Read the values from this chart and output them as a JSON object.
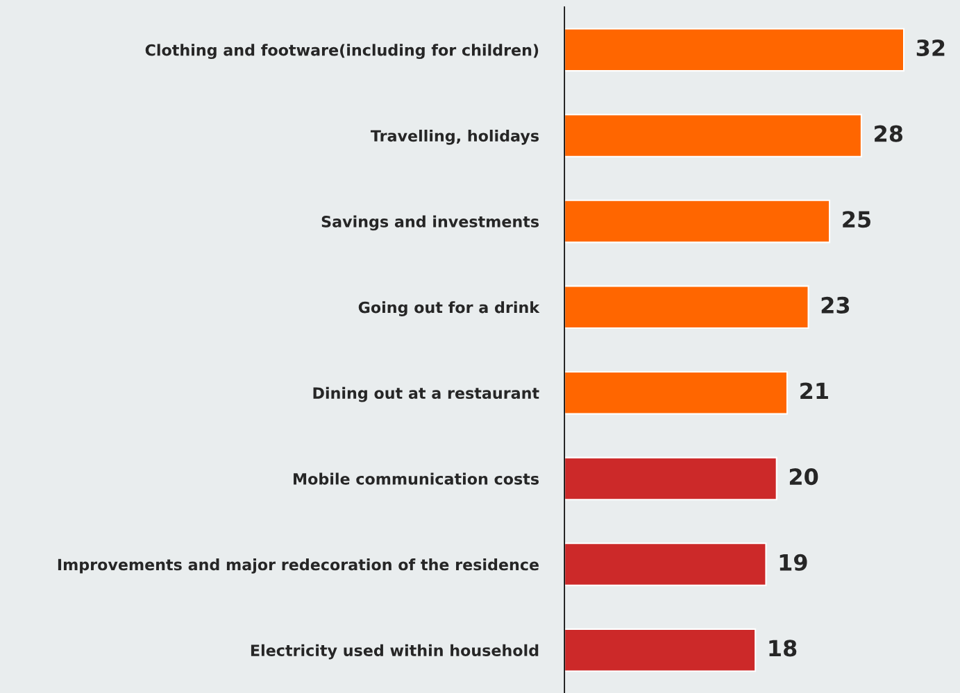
{
  "chart_data": {
    "type": "bar",
    "orientation": "horizontal",
    "data_labels": true,
    "grid": false,
    "legend": false,
    "categories": [
      "Clothing and footware(including for children)",
      "Travelling, holidays",
      "Savings and investments",
      "Going out for a drink",
      "Dining out at a restaurant",
      "Mobile communication costs",
      "Improvements and major redecoration of the residence",
      "Electricity used within household"
    ],
    "values": [
      32,
      28,
      25,
      23,
      21,
      20,
      19,
      18
    ],
    "colors": [
      "#ff6600",
      "#ff6600",
      "#ff6600",
      "#ff6600",
      "#ff6600",
      "#cc2929",
      "#cc2929",
      "#cc2929"
    ]
  }
}
